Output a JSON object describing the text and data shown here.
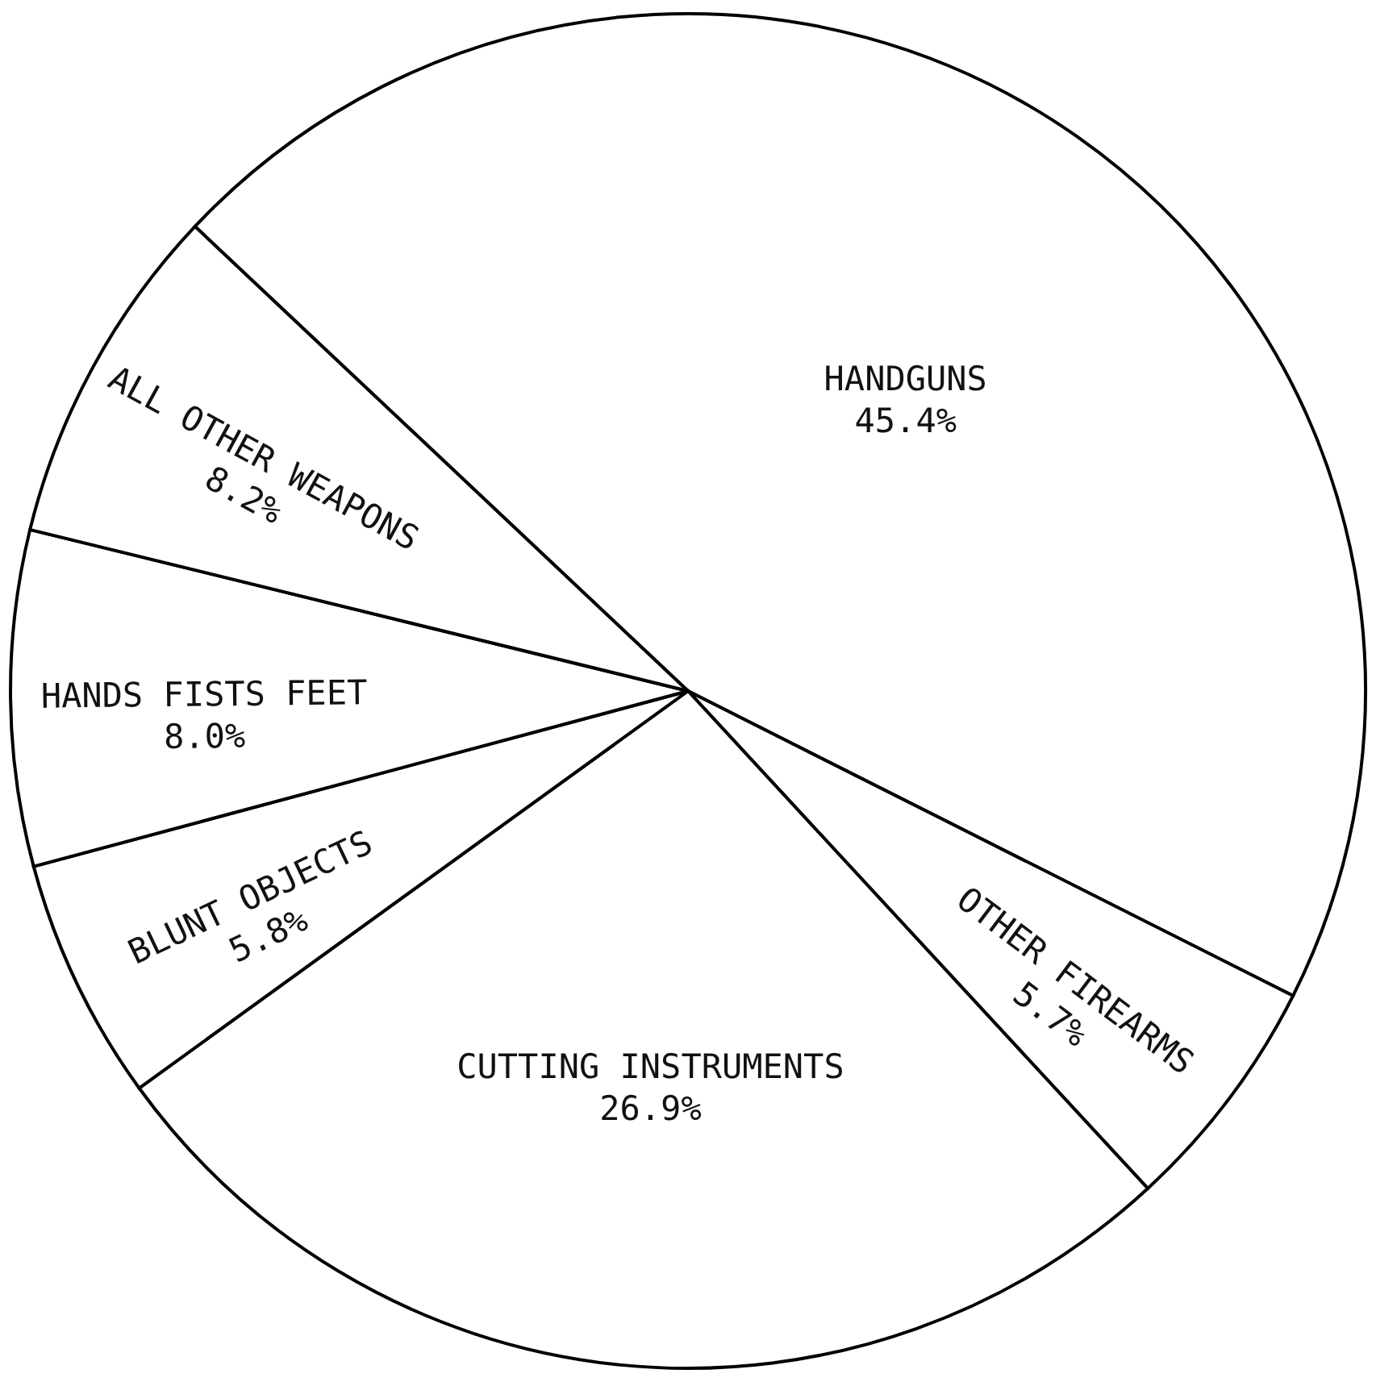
{
  "chart_data": {
    "type": "pie",
    "categories": [
      "HANDGUNS",
      "OTHER FIREARMS",
      "CUTTING INSTRUMENTS",
      "BLUNT OBJECTS",
      "HANDS FISTS FEET",
      "ALL OTHER WEAPONS"
    ],
    "values": [
      45.4,
      5.7,
      26.9,
      5.8,
      8.0,
      8.2
    ],
    "value_labels": [
      "45.4%",
      "5.7%",
      "26.9%",
      "5.8%",
      "8.0%",
      "8.2%"
    ],
    "colors": [
      "#ffffff",
      "#ffffff",
      "#ffffff",
      "#ffffff",
      "#ffffff",
      "#ffffff"
    ]
  }
}
